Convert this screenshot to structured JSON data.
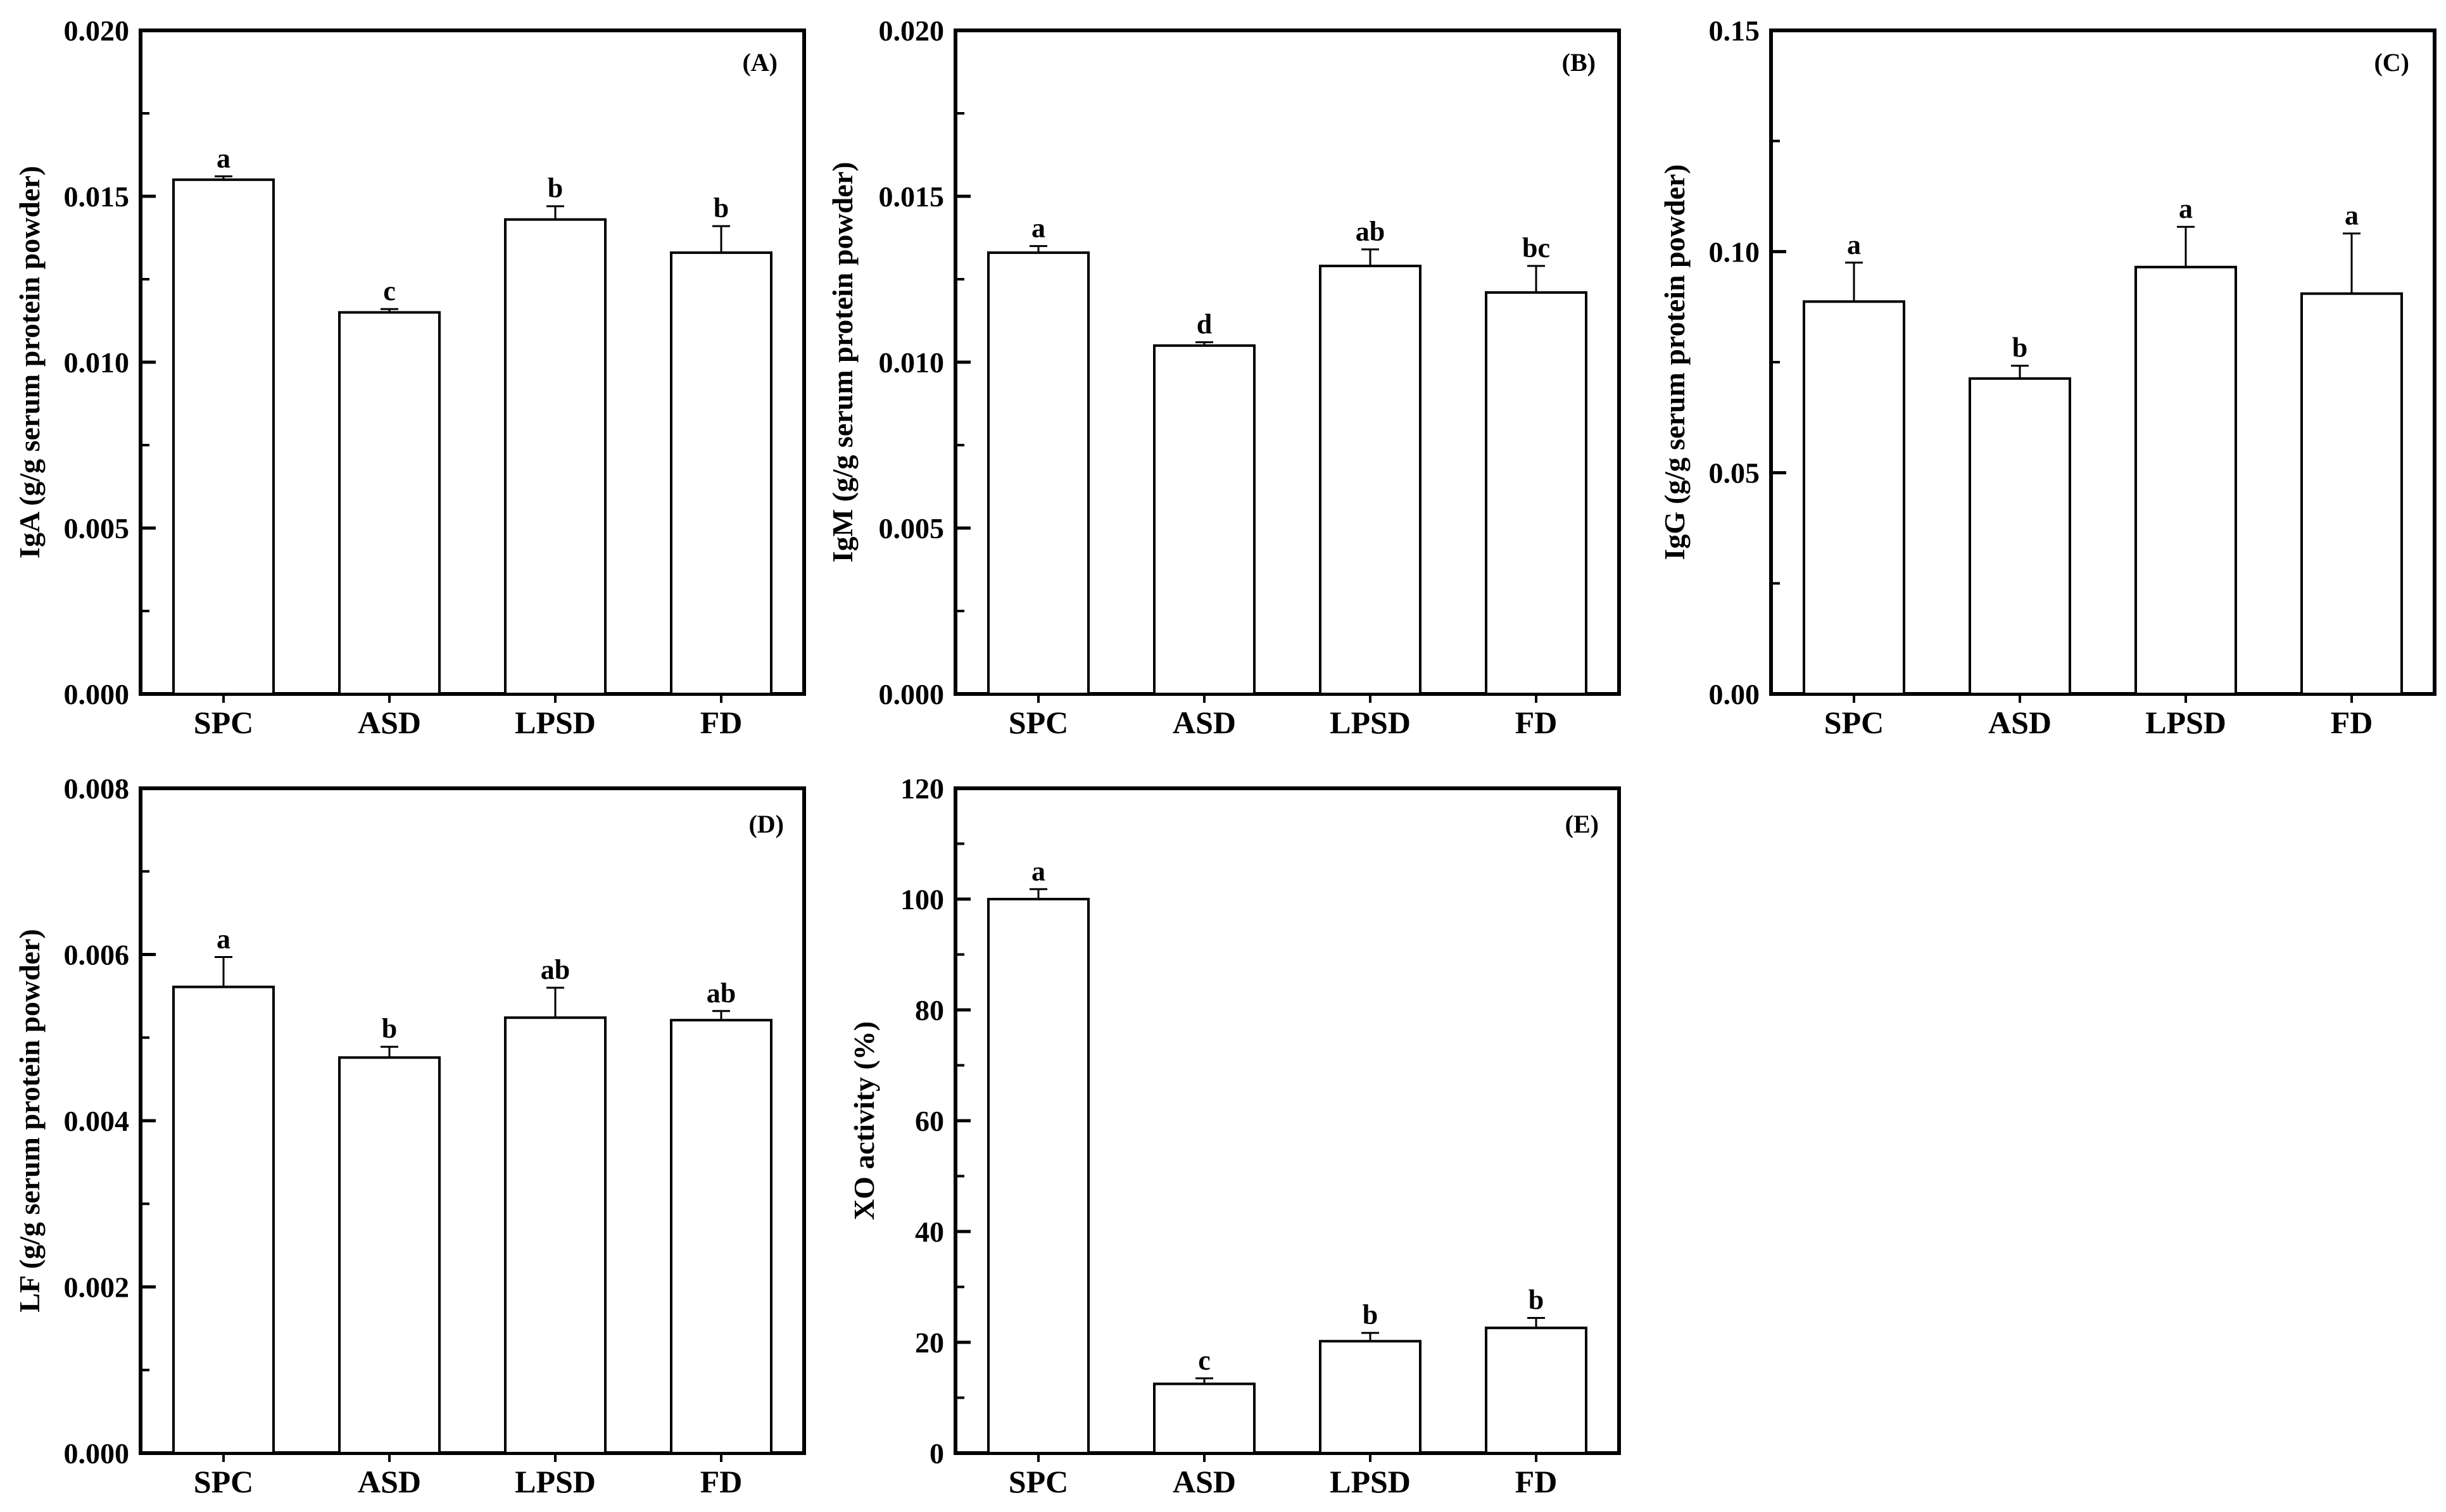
{
  "figure": {
    "panels": [
      {
        "id": "A",
        "label": "(A)"
      },
      {
        "id": "B",
        "label": "(B)"
      },
      {
        "id": "C",
        "label": "(C)"
      },
      {
        "id": "D",
        "label": "(D)"
      },
      {
        "id": "E",
        "label": "(E)"
      }
    ]
  },
  "chart_data": [
    {
      "type": "bar",
      "panel": "(A)",
      "categories": [
        "SPC",
        "ASD",
        "LPSD",
        "FD"
      ],
      "values": [
        0.0155,
        0.0115,
        0.0143,
        0.0133
      ],
      "errors": [
        0.0001,
        0.0001,
        0.0004,
        0.0008
      ],
      "significance": [
        "a",
        "c",
        "b",
        "b"
      ],
      "ylabel": "IgA (g/g serum protein powder)",
      "xlabel": "",
      "ylim": [
        0,
        0.02
      ],
      "yticks": [
        0.0,
        0.005,
        0.01,
        0.015,
        0.02
      ],
      "ytick_labels": [
        "0.000",
        "0.005",
        "0.010",
        "0.015",
        "0.020"
      ]
    },
    {
      "type": "bar",
      "panel": "(B)",
      "categories": [
        "SPC",
        "ASD",
        "LPSD",
        "FD"
      ],
      "values": [
        0.0133,
        0.0105,
        0.0129,
        0.0121
      ],
      "errors": [
        0.0002,
        0.0001,
        0.0005,
        0.0008
      ],
      "significance": [
        "a",
        "d",
        "ab",
        "bc"
      ],
      "ylabel": "IgM (g/g serum protein powder)",
      "xlabel": "",
      "ylim": [
        0,
        0.02
      ],
      "yticks": [
        0.0,
        0.005,
        0.01,
        0.015,
        0.02
      ],
      "ytick_labels": [
        "0.000",
        "0.005",
        "0.010",
        "0.015",
        "0.020"
      ]
    },
    {
      "type": "bar",
      "panel": "(C)",
      "categories": [
        "SPC",
        "ASD",
        "LPSD",
        "FD"
      ],
      "values": [
        0.0887,
        0.0713,
        0.0965,
        0.0905
      ],
      "errors": [
        0.0088,
        0.0029,
        0.0091,
        0.0136
      ],
      "significance": [
        "a",
        "b",
        "a",
        "a"
      ],
      "ylabel": "IgG (g/g serum protein powder)",
      "xlabel": "",
      "ylim": [
        0,
        0.15
      ],
      "yticks": [
        0.0,
        0.05,
        0.1,
        0.15
      ],
      "ytick_labels": [
        "0.00",
        "0.05",
        "0.10",
        "0.15"
      ]
    },
    {
      "type": "bar",
      "panel": "(D)",
      "categories": [
        "SPC",
        "ASD",
        "LPSD",
        "FD"
      ],
      "values": [
        0.00561,
        0.00476,
        0.00524,
        0.00521
      ],
      "errors": [
        0.00036,
        0.00013,
        0.00036,
        0.00011
      ],
      "significance": [
        "a",
        "b",
        "ab",
        "ab"
      ],
      "ylabel": "LF (g/g serum protein powder)",
      "xlabel": "",
      "ylim": [
        0,
        0.008
      ],
      "yticks": [
        0.0,
        0.002,
        0.004,
        0.006,
        0.008
      ],
      "ytick_labels": [
        "0.000",
        "0.002",
        "0.004",
        "0.006",
        "0.008"
      ]
    },
    {
      "type": "bar",
      "panel": "(E)",
      "categories": [
        "SPC",
        "ASD",
        "LPSD",
        "FD"
      ],
      "values": [
        100,
        12.5,
        20.2,
        22.6
      ],
      "errors": [
        1.8,
        1.0,
        1.5,
        1.8
      ],
      "significance": [
        "a",
        "c",
        "b",
        "b"
      ],
      "ylabel": "XO activity (%)",
      "xlabel": "",
      "ylim": [
        0,
        120
      ],
      "yticks": [
        0,
        20,
        40,
        60,
        80,
        100,
        120
      ],
      "ytick_labels": [
        "0",
        "20",
        "40",
        "60",
        "80",
        "100",
        "120"
      ]
    }
  ]
}
